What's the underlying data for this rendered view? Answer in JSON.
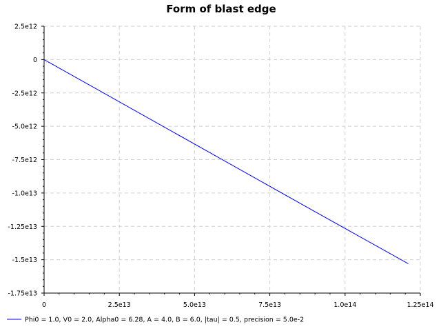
{
  "chart_data": {
    "type": "line",
    "title": "Form of blast edge",
    "xlabel": "",
    "ylabel": "",
    "xlim": [
      0,
      125000000000000.0
    ],
    "ylim": [
      -17500000000000.0,
      2500000000000.0
    ],
    "grid": true,
    "legend_position": "bottom-left",
    "x_ticks": [
      {
        "value": 0,
        "label": "0"
      },
      {
        "value": 25000000000000.0,
        "label": "2.5e13"
      },
      {
        "value": 50000000000000.0,
        "label": "5.0e13"
      },
      {
        "value": 75000000000000.0,
        "label": "7.5e13"
      },
      {
        "value": 100000000000000.0,
        "label": "1.0e14"
      },
      {
        "value": 125000000000000.0,
        "label": "1.25e14"
      }
    ],
    "y_ticks": [
      {
        "value": 2500000000000.0,
        "label": "2.5e12"
      },
      {
        "value": 0,
        "label": "0"
      },
      {
        "value": -2500000000000.0,
        "label": "-2.5e12"
      },
      {
        "value": -5000000000000.0,
        "label": "-5.0e12"
      },
      {
        "value": -7500000000000.0,
        "label": "-7.5e12"
      },
      {
        "value": -10000000000000.0,
        "label": "-1.0e13"
      },
      {
        "value": -12500000000000.0,
        "label": "-1.25e13"
      },
      {
        "value": -15000000000000.0,
        "label": "-1.5e13"
      },
      {
        "value": -17500000000000.0,
        "label": "-1.75e13"
      }
    ],
    "series": [
      {
        "name": "Phi0 = 1.0, V0 = 2.0, Alpha0 = 6.28, A = 4.0, B = 6.0, |tau| = 0.5, precision = 5.0e-2",
        "color": "#0000ff",
        "x": [
          0,
          30000000000000.0,
          60000000000000.0,
          90000000000000.0,
          121000000000000.0
        ],
        "y": [
          0,
          -3800000000000.0,
          -7600000000000.0,
          -11400000000000.0,
          -15300000000000.0
        ]
      }
    ]
  }
}
